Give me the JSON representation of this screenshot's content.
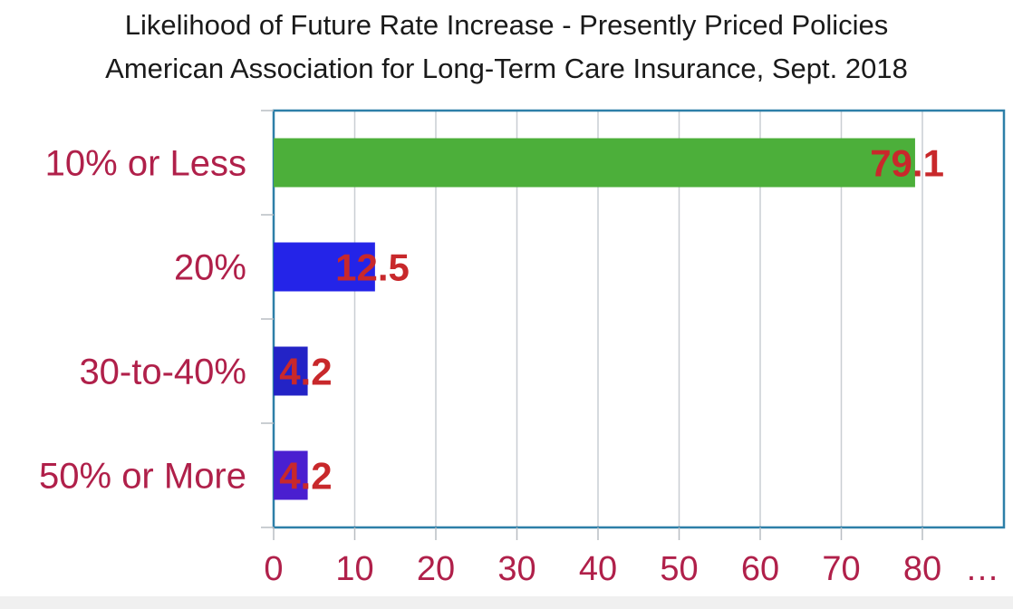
{
  "chart_data": {
    "type": "bar",
    "orientation": "horizontal",
    "title": "Likelihood of Future Rate Increase - Presently Priced Policies",
    "subtitle": "American Association for Long-Term Care Insurance, Sept. 2018",
    "categories": [
      "10% or Less",
      "20%",
      "30-to-40%",
      "50% or More"
    ],
    "values": [
      79.1,
      12.5,
      4.2,
      4.2
    ],
    "value_labels": [
      "79.1",
      "12.5",
      "4.2",
      "4.2"
    ],
    "bar_colors": [
      "#4caf3a",
      "#2424e8",
      "#2323c6",
      "#4a1fd0"
    ],
    "xlim": [
      0,
      90
    ],
    "x_ticks": [
      0,
      10,
      20,
      30,
      40,
      50,
      60,
      70,
      80
    ],
    "x_tick_labels": [
      "0",
      "10",
      "20",
      "30",
      "40",
      "50",
      "60",
      "70",
      "80"
    ],
    "x_tick_overflow": "…",
    "grid": true,
    "label_color": "#b0204a",
    "value_label_color": "#c8282b",
    "frame_color": "#2d7fa8"
  }
}
